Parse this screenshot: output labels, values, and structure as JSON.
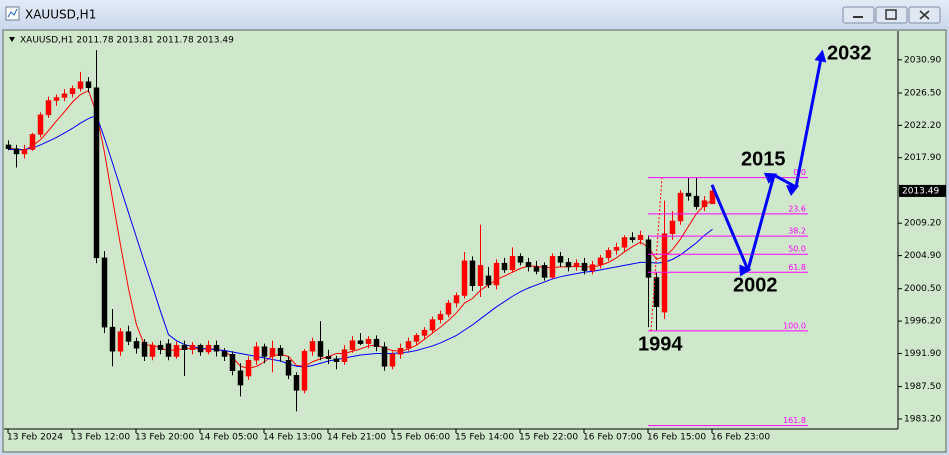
{
  "window_title": "XAUUSD,H1",
  "chart_data": {
    "type": "candlestick",
    "header": "XAUUSD,H1  2011.78 2013.81 2011.78 2013.49",
    "categories": [
      "13 Feb 2024",
      null,
      null,
      null,
      null,
      null,
      null,
      null,
      "13 Feb 12:00",
      null,
      null,
      null,
      null,
      null,
      null,
      null,
      "13 Feb 20:00",
      null,
      null,
      null,
      null,
      null,
      null,
      null,
      "14 Feb 05:00",
      null,
      null,
      null,
      null,
      null,
      null,
      null,
      "14 Feb 13:00",
      null,
      null,
      null,
      null,
      null,
      null,
      null,
      "14 Feb 21:00",
      null,
      null,
      null,
      null,
      null,
      null,
      null,
      "15 Feb 06:00",
      null,
      null,
      null,
      null,
      null,
      null,
      null,
      "15 Feb 14:00",
      null,
      null,
      null,
      null,
      null,
      null,
      null,
      "15 Feb 22:00",
      null,
      null,
      null,
      null,
      null,
      null,
      null,
      "16 Feb 07:00",
      null,
      null,
      null,
      null,
      null,
      null,
      null,
      "16 Feb 15:00",
      null,
      null,
      null,
      null,
      null,
      null,
      null,
      "16 Feb 23:00"
    ],
    "open": [
      2019.6,
      2019.1,
      2018.4,
      2019.0,
      2021.0,
      2023.6,
      2025.5,
      2025.9,
      2026.4,
      2027.1,
      2028.0,
      2027.2,
      2004.6,
      1995.4,
      1992.2,
      1994.8,
      1993.5,
      1993.4,
      1991.5,
      1993.0,
      1993.2,
      1991.5,
      1993.0,
      1992.4,
      1993.0,
      1992.1,
      1993.0,
      1992.2,
      1991.8,
      1989.6,
      1988.9,
      1991.0,
      1992.8,
      1991.5,
      1992.6,
      1991.0,
      1989.0,
      1987.0,
      1992.2,
      1993.5,
      1991.5,
      1991.2,
      1990.8,
      1992.4,
      1993.6,
      1993.2,
      1993.8,
      1992.8,
      1990.2,
      1991.8,
      1992.6,
      1993.5,
      1994.3,
      1995.0,
      1996.4,
      1997.1,
      1998.6,
      1999.6,
      2004.2,
      2000.9,
      2002.2,
      2001.0,
      2003.9,
      2003.0,
      2004.8,
      2004.0,
      2003.4,
      2003.6,
      2002.0,
      2004.8,
      2004.0,
      2003.4,
      2003.9,
      2002.9,
      2003.7,
      2004.6,
      2005.6,
      2006.0,
      2007.3,
      2007.0,
      2007.0,
      2002.0,
      1997.4,
      2007.8,
      2009.5,
      2013.2,
      2012.8,
      2011.4,
      2011.78
    ],
    "high": [
      2020.2,
      2019.6,
      2019.6,
      2021.2,
      2023.9,
      2026.0,
      2026.3,
      2027.0,
      2027.5,
      2029.3,
      2028.6,
      2032.2,
      2005.5,
      1997.8,
      1995.3,
      1995.6,
      1994.0,
      1993.8,
      1993.4,
      1993.6,
      1993.8,
      1993.5,
      1993.6,
      1993.4,
      1993.2,
      1993.6,
      1993.6,
      1992.6,
      1992.2,
      1990.6,
      1991.5,
      1993.4,
      1993.2,
      1993.6,
      1993.0,
      1991.5,
      1989.4,
      1992.5,
      1994.0,
      1996.2,
      1992.4,
      1991.6,
      1993.0,
      1994.2,
      1994.6,
      1994.2,
      1994.3,
      1993.4,
      1992.2,
      1993.2,
      1994.0,
      1994.6,
      1995.4,
      1996.8,
      1997.6,
      1999.0,
      2000.0,
      2005.4,
      2004.8,
      2009.0,
      2003.4,
      2004.4,
      2004.6,
      2006.0,
      2005.2,
      2004.6,
      2004.2,
      2004.0,
      2005.2,
      2005.4,
      2004.6,
      2004.4,
      2004.6,
      2004.2,
      2005.0,
      2006.0,
      2006.6,
      2007.6,
      2008.0,
      2008.2,
      2007.6,
      2002.6,
      2012.2,
      2010.8,
      2013.6,
      2015.2,
      2015.3,
      2012.8,
      2013.81
    ],
    "low": [
      2018.9,
      2016.6,
      2017.8,
      2018.8,
      2020.6,
      2023.2,
      2024.8,
      2025.4,
      2025.9,
      2026.7,
      2026.6,
      2003.9,
      1994.6,
      1990.2,
      1991.6,
      1993.0,
      1991.9,
      1990.9,
      1991.0,
      1991.8,
      1991.0,
      1991.2,
      1988.9,
      1991.8,
      1991.6,
      1991.8,
      1991.5,
      1990.9,
      1989.0,
      1986.2,
      1988.4,
      1990.4,
      1990.6,
      1989.4,
      1990.8,
      1988.5,
      1984.2,
      1986.6,
      1991.6,
      1991.0,
      1990.5,
      1989.8,
      1990.4,
      1992.0,
      1993.0,
      1992.6,
      1992.2,
      1989.6,
      1989.8,
      1991.2,
      1992.2,
      1993.0,
      1993.8,
      1994.6,
      1995.9,
      1996.7,
      1998.0,
      1999.2,
      2000.2,
      1999.4,
      2000.6,
      2000.4,
      2002.6,
      2002.6,
      2003.6,
      2002.8,
      2002.4,
      2001.6,
      2001.8,
      2003.4,
      2002.8,
      2002.9,
      2002.4,
      2002.4,
      2003.2,
      2004.2,
      2005.0,
      2005.4,
      2006.6,
      2006.4,
      1995.4,
      1995.0,
      1996.5,
      2007.0,
      2009.0,
      2012.2,
      2011.0,
      2010.8,
      2011.78
    ],
    "close": [
      2019.1,
      2018.4,
      2019.0,
      2021.0,
      2023.6,
      2025.5,
      2025.9,
      2026.4,
      2027.1,
      2028.0,
      2027.2,
      2004.6,
      1995.4,
      1992.2,
      1994.8,
      1993.5,
      1992.6,
      1991.5,
      1993.0,
      1992.4,
      1991.5,
      1993.0,
      1992.4,
      1993.0,
      1992.1,
      1993.0,
      1992.2,
      1991.5,
      1989.6,
      1987.7,
      1991.0,
      1992.8,
      1991.5,
      1992.6,
      1991.6,
      1989.0,
      1987.0,
      1992.2,
      1993.5,
      1991.5,
      1991.2,
      1990.8,
      1992.4,
      1993.6,
      1993.2,
      1993.8,
      1992.8,
      1990.2,
      1991.8,
      1992.6,
      1993.5,
      1994.3,
      1995.0,
      1996.4,
      1997.1,
      1998.6,
      1999.6,
      2004.2,
      2000.9,
      2003.6,
      2001.0,
      2003.9,
      2003.0,
      2004.8,
      2004.0,
      2003.4,
      2002.8,
      2002.0,
      2004.8,
      2004.0,
      2003.4,
      2003.9,
      2002.9,
      2003.7,
      2004.6,
      2005.6,
      2006.0,
      2007.3,
      2007.0,
      2007.6,
      2002.0,
      1998.1,
      2007.8,
      2009.5,
      2013.2,
      2012.8,
      2011.4,
      2012.2,
      2013.49
    ],
    "bull_color": "#ff0000",
    "bear_color": "#000000",
    "moving_averages": [
      {
        "color": "#ff0000",
        "values": [
          2019.2,
          2019.0,
          2018.9,
          2019.5,
          2020.3,
          2021.5,
          2022.8,
          2024.0,
          2025.3,
          2026.3,
          2026.8,
          2023.8,
          2018.6,
          2012.4,
          2006.3,
          2000.5,
          1995.7,
          1993.0,
          1993.0,
          1992.6,
          1992.3,
          1992.4,
          1992.5,
          1992.6,
          1992.5,
          1992.5,
          1992.5,
          1992.2,
          1991.4,
          1990.2,
          1989.9,
          1990.2,
          1990.8,
          1991.6,
          1991.8,
          1991.5,
          1990.3,
          1990.2,
          1990.8,
          1991.2,
          1991.5,
          1991.9,
          1991.9,
          1992.2,
          1992.5,
          1992.9,
          1993.0,
          1992.6,
          1992.3,
          1992.2,
          1992.5,
          1993.0,
          1993.8,
          1994.6,
          1995.4,
          1996.3,
          1997.3,
          1998.6,
          1999.2,
          2000.3,
          2001.0,
          2001.7,
          2002.2,
          2002.7,
          2003.2,
          2003.5,
          2003.5,
          2003.3,
          2003.3,
          2003.4,
          2003.4,
          2003.5,
          2003.4,
          2003.4,
          2003.6,
          2004.0,
          2004.6,
          2005.4,
          2006.1,
          2006.7,
          2006.0,
          2004.4,
          2004.8,
          2005.7,
          2007.1,
          2008.8,
          2010.5,
          2011.6,
          2012.3
        ]
      },
      {
        "color": "#0000ff",
        "values": [
          2019.0,
          2019.0,
          2019.0,
          2019.2,
          2019.6,
          2020.1,
          2020.6,
          2021.2,
          2021.8,
          2022.5,
          2023.1,
          2023.5,
          2020.5,
          2017.2,
          2013.9,
          2010.6,
          2007.3,
          2004.0,
          2000.8,
          1997.5,
          1994.4,
          1993.6,
          1993.1,
          1992.8,
          1992.6,
          1992.5,
          1992.4,
          1992.3,
          1992.1,
          1991.9,
          1991.7,
          1991.5,
          1991.3,
          1991.1,
          1990.9,
          1990.5,
          1990.2,
          1990.1,
          1990.3,
          1990.6,
          1990.9,
          1991.1,
          1991.3,
          1991.5,
          1991.7,
          1991.8,
          1991.9,
          1991.9,
          1991.9,
          1992.0,
          1992.1,
          1992.3,
          1992.6,
          1992.9,
          1993.3,
          1993.8,
          1994.3,
          1995.0,
          1995.7,
          1996.5,
          1997.3,
          1998.1,
          1998.8,
          1999.5,
          2000.1,
          2000.6,
          2001.0,
          2001.4,
          2001.8,
          2002.1,
          2002.3,
          2002.5,
          2002.7,
          2002.8,
          2003.0,
          2003.2,
          2003.4,
          2003.6,
          2003.8,
          2004.0,
          2004.0,
          2003.9,
          2004.0,
          2004.4,
          2005.0,
          2005.8,
          2006.6,
          2007.6,
          2008.4
        ]
      }
    ],
    "ylim": [
      1982.0,
      2034.6
    ],
    "yticks": [
      {
        "value": 2030.9,
        "label": "2030.90"
      },
      {
        "value": 2026.5,
        "label": "2026.50"
      },
      {
        "value": 2022.2,
        "label": "2022.20"
      },
      {
        "value": 2017.9,
        "label": "2017.90"
      },
      {
        "value": 2009.2,
        "label": "2009.20"
      },
      {
        "value": 2004.9,
        "label": "2004.90"
      },
      {
        "value": 2000.5,
        "label": "2000.50"
      },
      {
        "value": 1996.2,
        "label": "1996.20"
      },
      {
        "value": 1991.9,
        "label": "1991.90"
      },
      {
        "value": 1987.5,
        "label": "1987.50"
      },
      {
        "value": 1983.2,
        "label": "1983.20"
      }
    ],
    "current_price": 2013.49,
    "fibonacci": {
      "color": "#ff00ff",
      "levels": [
        {
          "label": "0.0",
          "price": 2015.26
        },
        {
          "label": "23.6",
          "price": 2010.45
        },
        {
          "label": "38.2",
          "price": 2007.48
        },
        {
          "label": "50.0",
          "price": 2005.08
        },
        {
          "label": "61.8",
          "price": 2002.68
        },
        {
          "label": "100.0",
          "price": 1994.9
        },
        {
          "label": "161.8",
          "price": 1982.32
        }
      ]
    },
    "projection": {
      "color": "#0000ff",
      "x": [
        88,
        92.5,
        95.75,
        98.5,
        101.75
      ],
      "y": [
        2014.3,
        2003.0,
        2015.6,
        2014.0,
        2031.8
      ]
    },
    "annotations": [
      "2032",
      "2015",
      "2002",
      "1994"
    ]
  }
}
